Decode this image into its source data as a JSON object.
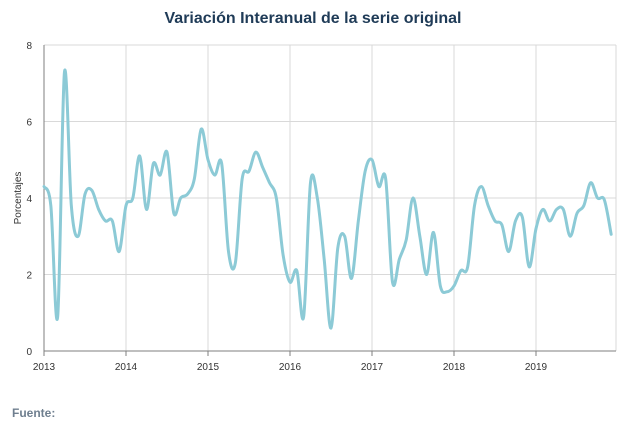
{
  "chart_data": {
    "type": "line",
    "title": "Variación Interanual de la serie original",
    "xlabel": "",
    "ylabel": "Porcentajes",
    "ylim": [
      0,
      8
    ],
    "yticks": [
      0,
      2,
      4,
      6,
      8
    ],
    "xticks": [
      "2013",
      "2014",
      "2015",
      "2016",
      "2017",
      "2018",
      "2019"
    ],
    "grid": true,
    "colors": {
      "line": "#8ccad6",
      "grid": "#d9d9d9",
      "axis": "#7f7f7f",
      "title": "#1f3b57"
    },
    "series": [
      {
        "start": "2013-01",
        "frequency": "monthly",
        "values": [
          4.3,
          3.8,
          0.9,
          7.3,
          3.8,
          3.0,
          4.1,
          4.2,
          3.7,
          3.4,
          3.4,
          2.6,
          3.8,
          4.0,
          5.1,
          3.7,
          4.9,
          4.6,
          5.2,
          3.6,
          4.0,
          4.1,
          4.5,
          5.8,
          5.0,
          4.6,
          4.9,
          2.6,
          2.3,
          4.5,
          4.7,
          5.2,
          4.8,
          4.4,
          4.0,
          2.5,
          1.8,
          2.1,
          0.9,
          4.4,
          4.0,
          2.4,
          0.6,
          2.7,
          3.0,
          1.9,
          3.4,
          4.7,
          5.0,
          4.3,
          4.5,
          1.8,
          2.4,
          2.9,
          4.0,
          3.0,
          2.0,
          3.1,
          1.7,
          1.55,
          1.7,
          2.1,
          2.2,
          3.8,
          4.3,
          3.8,
          3.4,
          3.3,
          2.6,
          3.4,
          3.5,
          2.2,
          3.2,
          3.7,
          3.4,
          3.7,
          3.7,
          3.0,
          3.6,
          3.8,
          4.4,
          4.0,
          3.95,
          3.05
        ]
      }
    ]
  },
  "source_label": "Fuente:"
}
